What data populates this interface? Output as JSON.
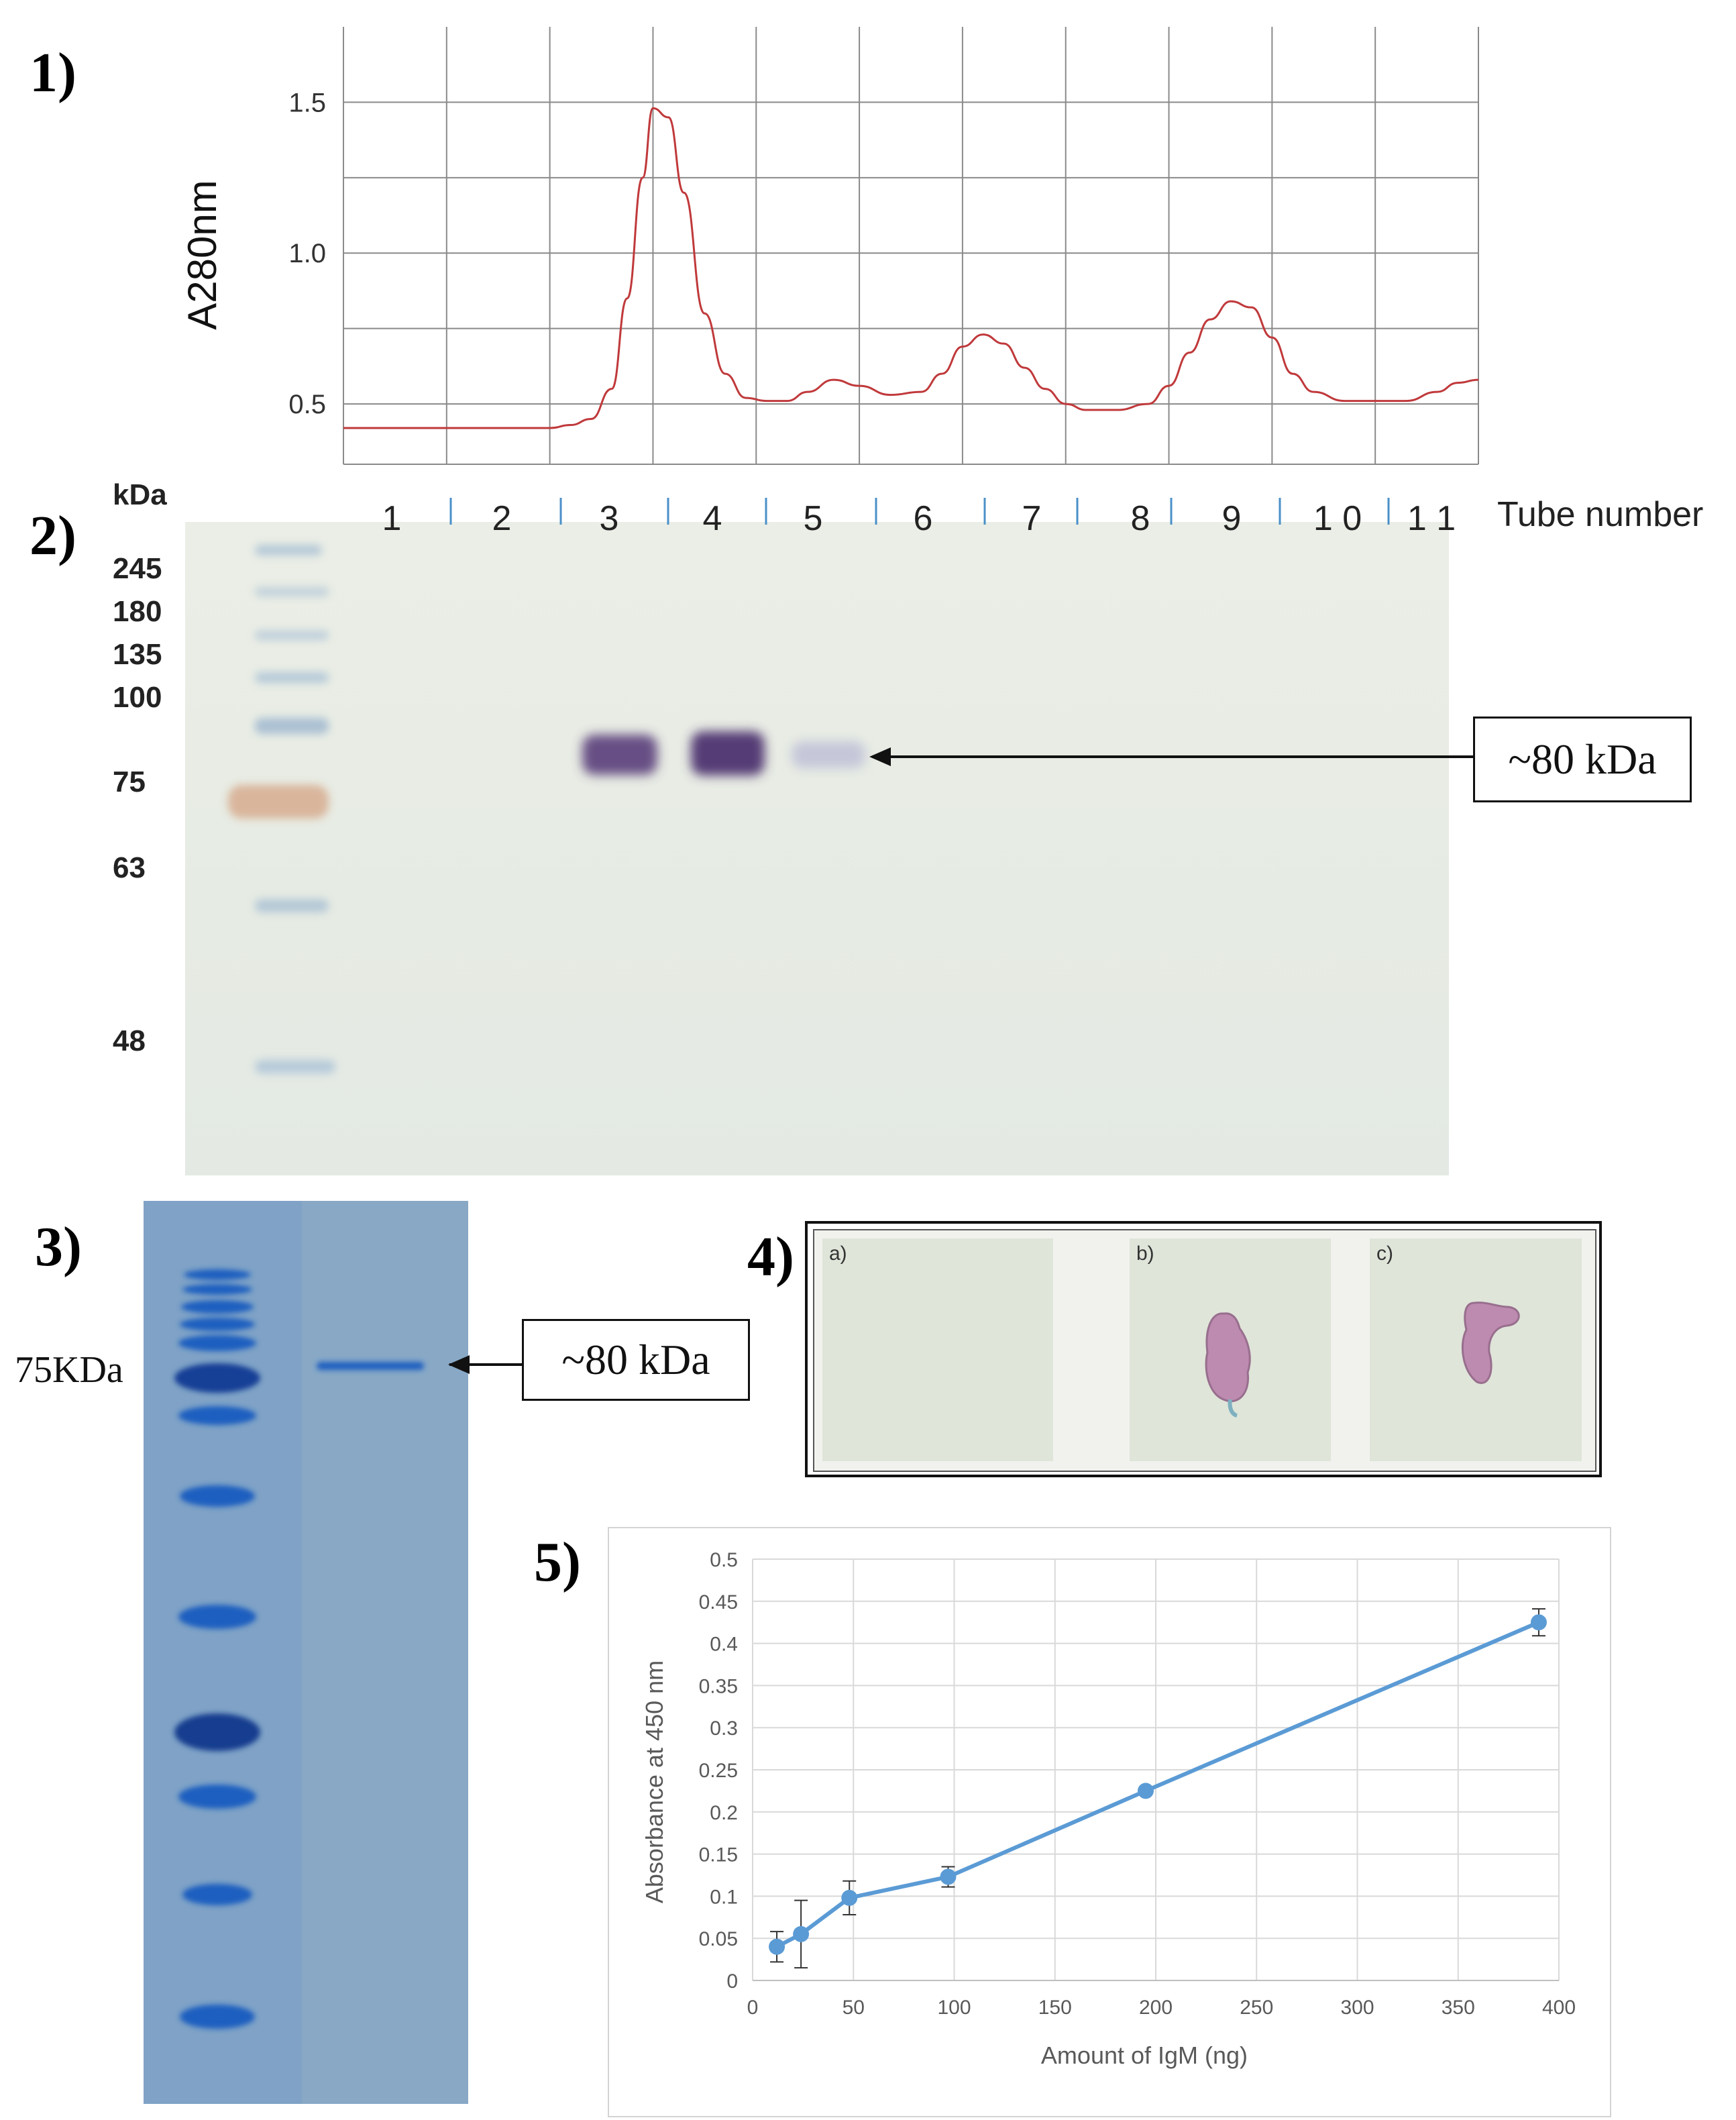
{
  "panels": {
    "p1": {
      "label": "1)"
    },
    "p2": {
      "label": "2)"
    },
    "p3": {
      "label": "3)"
    },
    "p4": {
      "label": "4)"
    },
    "p5": {
      "label": "5)"
    }
  },
  "chart_data": [
    {
      "type": "line",
      "ylabel": "A280nm",
      "yticks": [
        "1.5",
        "1.0",
        "0.5"
      ],
      "ytick_values": [
        1.5,
        1.0,
        0.5
      ],
      "ylim": [
        0.3,
        1.75
      ],
      "xlim": [
        0,
        11
      ],
      "grid": true,
      "x": [
        0,
        1,
        2,
        2.2,
        2.4,
        2.6,
        2.75,
        2.9,
        3.0,
        3.15,
        3.3,
        3.5,
        3.7,
        3.9,
        4.1,
        4.3,
        4.5,
        4.75,
        5.0,
        5.3,
        5.6,
        5.8,
        6.0,
        6.2,
        6.4,
        6.6,
        6.8,
        7.0,
        7.2,
        7.5,
        7.8,
        8.0,
        8.2,
        8.4,
        8.6,
        8.8,
        9.0,
        9.2,
        9.4,
        9.7,
        10.0,
        10.3,
        10.6,
        10.8,
        11.0
      ],
      "y": [
        0.42,
        0.42,
        0.42,
        0.43,
        0.45,
        0.55,
        0.85,
        1.25,
        1.48,
        1.45,
        1.2,
        0.8,
        0.6,
        0.52,
        0.51,
        0.51,
        0.54,
        0.58,
        0.56,
        0.53,
        0.54,
        0.6,
        0.69,
        0.73,
        0.7,
        0.62,
        0.55,
        0.5,
        0.48,
        0.48,
        0.5,
        0.56,
        0.67,
        0.78,
        0.84,
        0.82,
        0.72,
        0.6,
        0.54,
        0.51,
        0.51,
        0.51,
        0.54,
        0.57,
        0.58
      ]
    },
    {
      "type": "line",
      "xlabel": "Amount of IgM (ng)",
      "ylabel": "Absorbance at 450 nm",
      "xlim": [
        0,
        400
      ],
      "ylim": [
        0,
        0.5
      ],
      "xticks": [
        "0",
        "50",
        "100",
        "150",
        "200",
        "250",
        "300",
        "350",
        "400"
      ],
      "xtick_values": [
        0,
        50,
        100,
        150,
        200,
        250,
        300,
        350,
        400
      ],
      "yticks": [
        "0",
        "0.05",
        "0.1",
        "0.15",
        "0.2",
        "0.25",
        "0.3",
        "0.35",
        "0.4",
        "0.45",
        "0.5"
      ],
      "ytick_values": [
        0,
        0.05,
        0.1,
        0.15,
        0.2,
        0.25,
        0.3,
        0.35,
        0.4,
        0.45,
        0.5
      ],
      "grid": true,
      "series": [
        {
          "x": [
            12,
            24,
            48,
            97,
            195,
            390
          ],
          "y": [
            0.04,
            0.055,
            0.098,
            0.123,
            0.225,
            0.425
          ],
          "err": [
            0.018,
            0.04,
            0.02,
            0.012,
            0.004,
            0.016
          ],
          "color": "#5b9bd5"
        }
      ]
    }
  ],
  "blot": {
    "unit_label": "kDa",
    "markers": [
      "245",
      "180",
      "135",
      "100",
      "75",
      "63",
      "48"
    ],
    "lanes": [
      "1",
      "2",
      "3",
      "4",
      "5",
      "6",
      "7",
      "8",
      "9",
      "1 0",
      "1 1"
    ],
    "axis_label": "Tube number",
    "band_label": "~80 kDa"
  },
  "gel": {
    "marker_label": "75KDa",
    "band_label": "~80 kDa"
  },
  "stain": {
    "sub_labels": [
      "a)",
      "b)",
      "c)"
    ]
  },
  "colors": {
    "chromatogram_line": "#c0393b",
    "elisa_line": "#5b9bd5",
    "coomassie_blue": "#1e5fc0",
    "blot_band": "#5a3d7a",
    "stain_pink": "#b87ca8"
  }
}
